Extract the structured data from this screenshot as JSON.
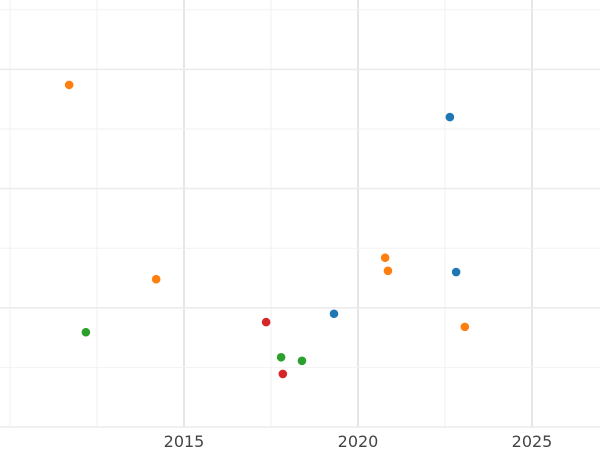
{
  "chart_data": {
    "type": "scatter",
    "title": "",
    "xlabel": "",
    "ylabel": "",
    "xlim": [
      2010,
      2026.9
    ],
    "ylim": [
      0,
      7.2
    ],
    "x_ticks": [
      2015,
      2020,
      2025
    ],
    "x_tick_labels": [
      "2015",
      "2020",
      "2025"
    ],
    "y_gridlines": [
      0,
      1,
      2,
      3,
      4,
      5,
      6,
      7
    ],
    "grid": true,
    "legend": "none",
    "colors": {
      "blue": "#1f77b4",
      "orange": "#ff7f0e",
      "green": "#2ca02c",
      "red": "#d62728"
    },
    "points": [
      {
        "x": 2011.7,
        "y": 5.74,
        "color": "#ff7f0e"
      },
      {
        "x": 2022.64,
        "y": 5.2,
        "color": "#1f77b4"
      },
      {
        "x": 2020.78,
        "y": 2.84,
        "color": "#ff7f0e"
      },
      {
        "x": 2020.86,
        "y": 2.62,
        "color": "#ff7f0e"
      },
      {
        "x": 2022.82,
        "y": 2.6,
        "color": "#1f77b4"
      },
      {
        "x": 2014.2,
        "y": 2.48,
        "color": "#ff7f0e"
      },
      {
        "x": 2019.31,
        "y": 1.9,
        "color": "#1f77b4"
      },
      {
        "x": 2017.36,
        "y": 1.76,
        "color": "#d62728"
      },
      {
        "x": 2023.07,
        "y": 1.68,
        "color": "#ff7f0e"
      },
      {
        "x": 2012.18,
        "y": 1.59,
        "color": "#2ca02c"
      },
      {
        "x": 2017.79,
        "y": 1.17,
        "color": "#2ca02c"
      },
      {
        "x": 2018.39,
        "y": 1.11,
        "color": "#2ca02c"
      },
      {
        "x": 2017.84,
        "y": 0.89,
        "color": "#d62728"
      }
    ]
  }
}
